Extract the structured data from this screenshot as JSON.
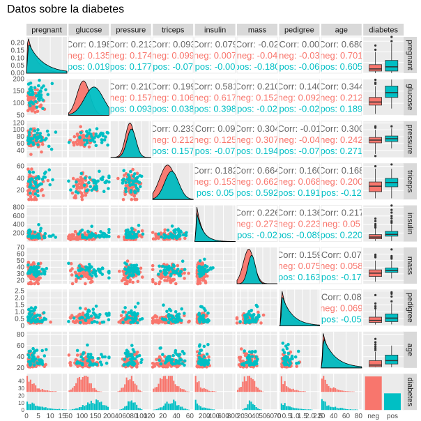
{
  "chart_data": {
    "type": "scatter-matrix",
    "title": "Datos sobre la diabetes",
    "variables": [
      "pregnant",
      "glucose",
      "pressure",
      "triceps",
      "insulin",
      "mass",
      "pedigree",
      "age",
      "diabetes"
    ],
    "groups": [
      "neg",
      "pos"
    ],
    "colors": {
      "neg": "#F8766D",
      "pos": "#00BFC4",
      "overall": "#666666"
    },
    "axes": {
      "pregnant": {
        "lim": [
          0,
          17
        ],
        "ticks": [
          0,
          5,
          10,
          15
        ],
        "tick_labels": [
          "0",
          "5",
          "10",
          "15"
        ]
      },
      "glucose": {
        "lim": [
          50,
          200
        ],
        "ticks": [
          50,
          100,
          150,
          200
        ],
        "tick_labels": [
          "50",
          "100",
          "150",
          "200"
        ]
      },
      "pressure": {
        "lim": [
          20,
          125
        ],
        "ticks": [
          40,
          60,
          80,
          100,
          120
        ],
        "tick_labels": [
          "40",
          "60",
          "80",
          "100",
          "120"
        ]
      },
      "triceps": {
        "lim": [
          5,
          65
        ],
        "ticks": [
          20,
          40,
          60
        ],
        "tick_labels": [
          "20",
          "40",
          "60"
        ]
      },
      "insulin": {
        "lim": [
          0,
          850
        ],
        "ticks": [
          200,
          400,
          600,
          800
        ],
        "tick_labels": [
          "200",
          "400",
          "600",
          "800"
        ]
      },
      "mass": {
        "lim": [
          15,
          70
        ],
        "ticks": [
          20,
          30,
          40,
          50,
          60,
          70
        ],
        "tick_labels": [
          "20",
          "30",
          "40",
          "50",
          "60",
          "70"
        ]
      },
      "pedigree": {
        "lim": [
          0,
          2.6
        ],
        "ticks": [
          0,
          0.5,
          1.0,
          1.5,
          2.0,
          2.5
        ],
        "tick_labels": [
          "0",
          "0.5",
          "1.0",
          "1.5",
          "2.0",
          "2.5"
        ]
      },
      "age": {
        "lim": [
          20,
          85
        ],
        "ticks": [
          20,
          40,
          60,
          80
        ],
        "tick_labels": [
          "20",
          "40",
          "60",
          "80"
        ]
      }
    },
    "diag_density_yaxis": {
      "ticks": [
        0,
        0.05,
        0.1,
        0.15,
        0.2
      ],
      "tick_labels": [
        "0.00",
        "0.05",
        "0.10",
        "0.15",
        "0.20"
      ],
      "max": 0.24
    },
    "diabetes_bar_yaxis": {
      "ticks": [
        0,
        10,
        20,
        30,
        40
      ],
      "tick_labels": [
        "0",
        "10",
        "20",
        "30",
        "40"
      ]
    },
    "correlations": [
      {
        "vars": [
          "pregnant",
          "glucose"
        ],
        "overall": "Corr: 0.198",
        "neg": "neg: 0.135",
        "pos": "pos: 0.019"
      },
      {
        "vars": [
          "pregnant",
          "pressure"
        ],
        "overall": "Corr: 0.213",
        "neg": "neg: 0.174",
        "pos": "pos: 0.177"
      },
      {
        "vars": [
          "pregnant",
          "triceps"
        ],
        "overall": "Corr: 0.093",
        "neg": "neg: 0.099",
        "pos": "pos: -0.07"
      },
      {
        "vars": [
          "pregnant",
          "insulin"
        ],
        "overall": "Corr: 0.079",
        "neg": "neg: 0.007",
        "pos": "pos: -0.00"
      },
      {
        "vars": [
          "pregnant",
          "mass"
        ],
        "overall": "Corr: -0.02",
        "neg": "neg: -0.04",
        "pos": "pos: -0.180"
      },
      {
        "vars": [
          "pregnant",
          "pedigree"
        ],
        "overall": "Corr: 0.00",
        "neg": "neg: -0.03",
        "pos": "pos: -0.06"
      },
      {
        "vars": [
          "pregnant",
          "age"
        ],
        "overall": "Corr: 0.680",
        "neg": "neg: 0.701",
        "pos": "pos: 0.605"
      },
      {
        "vars": [
          "glucose",
          "pressure"
        ],
        "overall": "Corr: 0.210",
        "neg": "neg: 0.157",
        "pos": "pos: 0.093"
      },
      {
        "vars": [
          "glucose",
          "triceps"
        ],
        "overall": "Corr: 0.199",
        "neg": "neg: 0.106",
        "pos": "pos: 0.038"
      },
      {
        "vars": [
          "glucose",
          "insulin"
        ],
        "overall": "Corr: 0.581",
        "neg": "neg: 0.617",
        "pos": "pos: 0.398"
      },
      {
        "vars": [
          "glucose",
          "mass"
        ],
        "overall": "Corr: 0.210",
        "neg": "neg: 0.152",
        "pos": "pos: -0.02"
      },
      {
        "vars": [
          "glucose",
          "pedigree"
        ],
        "overall": "Corr: 0.140",
        "neg": "neg: 0.092",
        "pos": "pos: -0.02"
      },
      {
        "vars": [
          "glucose",
          "age"
        ],
        "overall": "Corr: 0.344",
        "neg": "neg: 0.212",
        "pos": "pos: 0.189"
      },
      {
        "vars": [
          "pressure",
          "triceps"
        ],
        "overall": "Corr: 0.233",
        "neg": "neg: 0.212",
        "pos": "pos: 0.157"
      },
      {
        "vars": [
          "pressure",
          "insulin"
        ],
        "overall": "Corr: 0.09",
        "neg": "neg: 0.125",
        "pos": "pos: -0.07"
      },
      {
        "vars": [
          "pressure",
          "mass"
        ],
        "overall": "Corr: 0.304",
        "neg": "neg: 0.307",
        "pos": "pos: 0.194"
      },
      {
        "vars": [
          "pressure",
          "pedigree"
        ],
        "overall": "Corr: -0.01",
        "neg": "neg: -0.04",
        "pos": "pos: -0.07"
      },
      {
        "vars": [
          "pressure",
          "age"
        ],
        "overall": "Corr: 0.300",
        "neg": "neg: 0.242",
        "pos": "pos: 0.271"
      },
      {
        "vars": [
          "triceps",
          "insulin"
        ],
        "overall": "Corr: 0.182",
        "neg": "neg: 0.153",
        "pos": "pos: 0.05"
      },
      {
        "vars": [
          "triceps",
          "mass"
        ],
        "overall": "Corr: 0.664",
        "neg": "neg: 0.662",
        "pos": "pos: 0.592"
      },
      {
        "vars": [
          "triceps",
          "pedigree"
        ],
        "overall": "Corr: 0.160",
        "neg": "neg: 0.068",
        "pos": "pos: 0.191"
      },
      {
        "vars": [
          "triceps",
          "age"
        ],
        "overall": "Corr: 0.168",
        "neg": "neg: 0.200",
        "pos": "pos: -0.12"
      },
      {
        "vars": [
          "insulin",
          "mass"
        ],
        "overall": "Corr: 0.226",
        "neg": "neg: 0.273",
        "pos": "pos: -0.02"
      },
      {
        "vars": [
          "insulin",
          "pedigree"
        ],
        "overall": "Corr: 0.136",
        "neg": "neg: 0.223",
        "pos": "pos: -0.089"
      },
      {
        "vars": [
          "insulin",
          "age"
        ],
        "overall": "Corr: 0.217",
        "neg": "neg: 0.05",
        "pos": "pos: 0.220"
      },
      {
        "vars": [
          "mass",
          "pedigree"
        ],
        "overall": "Corr: 0.159",
        "neg": "neg: 0.075",
        "pos": "pos: 0.163"
      },
      {
        "vars": [
          "mass",
          "age"
        ],
        "overall": "Corr: 0.07",
        "neg": "neg: 0.058",
        "pos": "pos: -0.17"
      },
      {
        "vars": [
          "pedigree",
          "age"
        ],
        "overall": "Corr: 0.08",
        "neg": "neg: 0.069",
        "pos": "pos: -0.05"
      }
    ],
    "boxplots": {
      "pregnant": {
        "neg": {
          "q1": 1,
          "med": 2,
          "q3": 4,
          "min": 0,
          "max": 10,
          "out": [
            11,
            13
          ]
        },
        "pos": {
          "q1": 1,
          "med": 3,
          "q3": 6,
          "min": 0,
          "max": 14,
          "out": [
            15,
            17
          ]
        }
      },
      "glucose": {
        "neg": {
          "q1": 92,
          "med": 105,
          "q3": 124,
          "min": 56,
          "max": 170,
          "out": [
            180,
            185,
            197
          ]
        },
        "pos": {
          "q1": 124,
          "med": 144,
          "q3": 171,
          "min": 78,
          "max": 198,
          "out": []
        }
      },
      "pressure": {
        "neg": {
          "q1": 62,
          "med": 70,
          "q3": 78,
          "min": 30,
          "max": 100,
          "out": [
            24,
            106,
            110
          ]
        },
        "pos": {
          "q1": 66,
          "med": 74,
          "q3": 82,
          "min": 46,
          "max": 104,
          "out": [
            110
          ]
        }
      },
      "triceps": {
        "neg": {
          "q1": 18,
          "med": 27,
          "q3": 34,
          "min": 7,
          "max": 56,
          "out": [
            60
          ]
        },
        "pos": {
          "q1": 26,
          "med": 33,
          "q3": 40,
          "min": 7,
          "max": 56,
          "out": [
            63
          ]
        }
      },
      "insulin": {
        "neg": {
          "q1": 66,
          "med": 105,
          "q3": 163,
          "min": 15,
          "max": 310,
          "out": [
            330,
            370,
            410,
            480,
            540
          ]
        },
        "pos": {
          "q1": 127,
          "med": 169,
          "q3": 240,
          "min": 14,
          "max": 400,
          "out": [
            440,
            480,
            545,
            600,
            680,
            744,
            846
          ]
        }
      },
      "mass": {
        "neg": {
          "q1": 26,
          "med": 31,
          "q3": 36,
          "min": 18,
          "max": 50,
          "out": [
            55,
            57,
            59
          ]
        },
        "pos": {
          "q1": 32,
          "med": 35,
          "q3": 39,
          "min": 23,
          "max": 50,
          "out": [
            53,
            55,
            57,
            67
          ]
        }
      },
      "pedigree": {
        "neg": {
          "q1": 0.24,
          "med": 0.39,
          "q3": 0.62,
          "min": 0.09,
          "max": 1.2,
          "out": [
            1.25,
            1.4,
            1.6,
            2.2
          ]
        },
        "pos": {
          "q1": 0.3,
          "med": 0.55,
          "q3": 0.85,
          "min": 0.1,
          "max": 1.6,
          "out": [
            1.75,
            2.1,
            2.3,
            2.4
          ]
        }
      },
      "age": {
        "neg": {
          "q1": 22,
          "med": 25,
          "q3": 33,
          "min": 21,
          "max": 49,
          "out": [
            52,
            55,
            58,
            62,
            66,
            72
          ]
        },
        "pos": {
          "q1": 27,
          "med": 33,
          "q3": 43,
          "min": 21,
          "max": 60,
          "out": []
        }
      }
    },
    "diabetes_counts": {
      "neg": 262,
      "pos": 130
    }
  }
}
